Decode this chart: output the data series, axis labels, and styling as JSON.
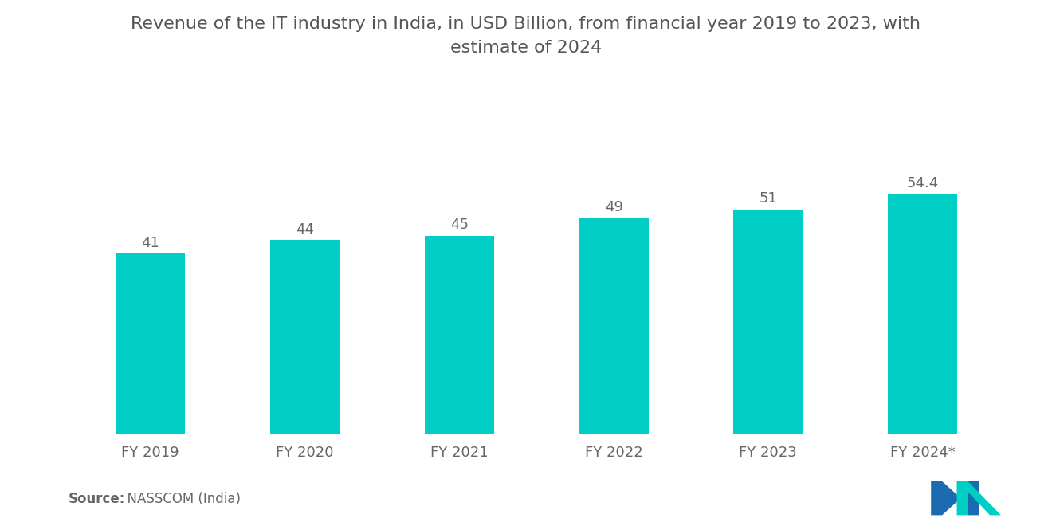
{
  "categories": [
    "FY 2019",
    "FY 2020",
    "FY 2021",
    "FY 2022",
    "FY 2023",
    "FY 2024*"
  ],
  "values": [
    41,
    44,
    45,
    49,
    51,
    54.4
  ],
  "bar_color": "#00CEC4",
  "title_line1": "Revenue of the IT industry in India, in USD Billion, from financial year 2019 to 2023, with",
  "title_line2": "estimate of 2024",
  "title_fontsize": 16,
  "bar_label_fontsize": 13,
  "xtick_fontsize": 13,
  "source_bold": "Source:",
  "source_normal": "  NASSCOM (India)",
  "source_fontsize": 12,
  "background_color": "#ffffff",
  "ylim": [
    0,
    72
  ],
  "bar_width": 0.45,
  "label_color": "#666666",
  "xtick_color": "#666666"
}
